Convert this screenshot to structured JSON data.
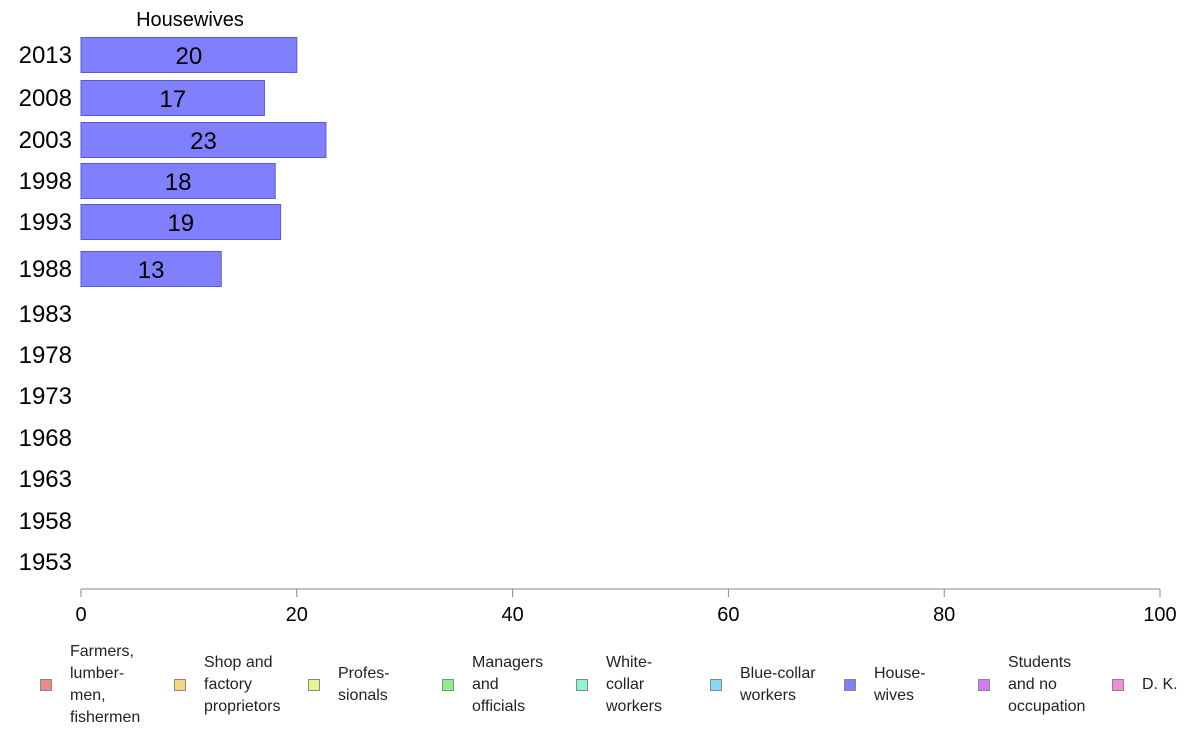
{
  "chart_data": {
    "type": "bar",
    "orientation": "horizontal",
    "panel_title": "Housewives",
    "categories": [
      "2013",
      "2008",
      "2003",
      "1998",
      "1993",
      "1988",
      "1983",
      "1978",
      "1973",
      "1968",
      "1963",
      "1958",
      "1953"
    ],
    "series": [
      {
        "name": "House-\nwives",
        "color": "#8080ff",
        "values": [
          20,
          17,
          22.7,
          18,
          18.5,
          13,
          null,
          null,
          null,
          null,
          null,
          null,
          null
        ],
        "labels": [
          "20",
          "17",
          "23",
          "18",
          "19",
          "13",
          "",
          "",
          "",
          "",
          "",
          "",
          ""
        ]
      }
    ],
    "xlim": [
      0,
      100
    ],
    "xticks": [
      "0",
      "20",
      "40",
      "60",
      "80",
      "100"
    ],
    "grid": false,
    "legend_position": "bottom",
    "legend": [
      {
        "label": "Farmers,\nlumber-\nmen,\nfishermen",
        "color": "#f08a8a"
      },
      {
        "label": "Shop and\nfactory\nproprietors",
        "color": "#f6d680"
      },
      {
        "label": "Profes-\nsionals",
        "color": "#e8f58a"
      },
      {
        "label": "Managers\nand\nofficials",
        "color": "#8cf08c"
      },
      {
        "label": "White-\ncollar\nworkers",
        "color": "#8cf5d6"
      },
      {
        "label": "Blue-collar\nworkers",
        "color": "#8ad6f6"
      },
      {
        "label": "House-\nwives",
        "color": "#8080ff"
      },
      {
        "label": "Students\nand no\noccupation",
        "color": "#d47cf5"
      },
      {
        "label": "D. K.",
        "color": "#f58ad6"
      }
    ]
  }
}
